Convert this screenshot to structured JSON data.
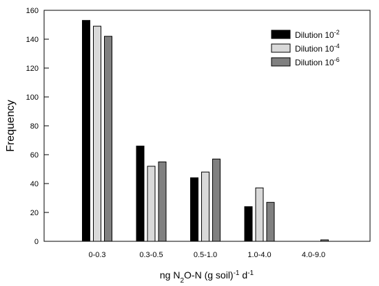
{
  "chart_data": {
    "type": "bar",
    "categories": [
      "0-0.3",
      "0.3-0.5",
      "0.5-1.0",
      "1.0-4.0",
      "4.0-9.0"
    ],
    "series": [
      {
        "name": "Dilution 10",
        "exponent": "-2",
        "color": "#000000",
        "values": [
          153,
          66,
          44,
          24,
          0
        ]
      },
      {
        "name": "Dilution 10",
        "exponent": "-4",
        "color": "#d9d9d9",
        "values": [
          149,
          52,
          48,
          37,
          0
        ]
      },
      {
        "name": "Dilution 10",
        "exponent": "-6",
        "color": "#808080",
        "values": [
          142,
          55,
          57,
          27,
          1
        ]
      }
    ],
    "ylabel": "Frequency",
    "xlabel": {
      "parts": [
        {
          "text": "ng N",
          "shift": "none"
        },
        {
          "text": "2",
          "shift": "sub"
        },
        {
          "text": "O-N (g soil)",
          "shift": "none"
        },
        {
          "text": "-1",
          "shift": "sup"
        },
        {
          "text": " d",
          "shift": "none"
        },
        {
          "text": "-1",
          "shift": "sup"
        }
      ]
    },
    "ylim": [
      0,
      160
    ],
    "yticks": [
      0,
      20,
      40,
      60,
      80,
      100,
      120,
      140,
      160
    ],
    "grid": false,
    "legend_position": "top-right"
  }
}
